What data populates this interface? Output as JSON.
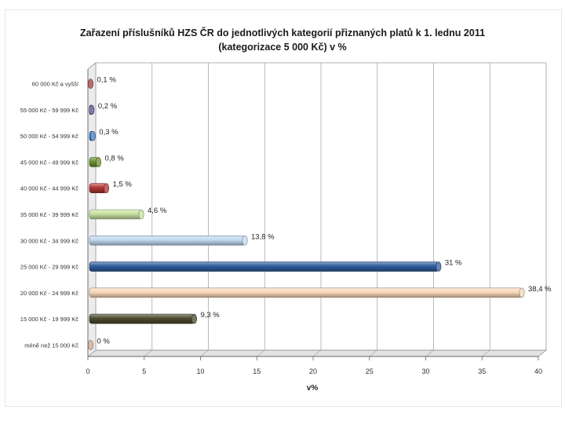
{
  "chart_data": {
    "type": "bar",
    "orientation": "horizontal",
    "title_line1": "Zařazení příslušníků HZS ČR do jednotlivých kategorií přiznaných platů  k 1. lednu 2011",
    "title_line2": "(kategorizace 5 000 Kč)  v %",
    "xlabel": "v%",
    "ylabel": "",
    "xlim": [
      0,
      40
    ],
    "x_ticks": [
      "0",
      "5",
      "10",
      "15",
      "20",
      "25",
      "30",
      "35",
      "40"
    ],
    "grid": "vertical",
    "legend": "none",
    "categories": [
      "60 000 Kč a vyšší",
      "55 000 Kč - 59 999 Kč",
      "50 000 Kč - 54 999 Kč",
      "45 000 Kč - 49 999 Kč",
      "40 000 Kč - 44 999 Kč",
      "35 000 Kč - 39 999 Kč",
      "30 000 Kč - 34 999 Kč",
      "25 000 Kč - 29 999 Kč",
      "20 000 Kč - 24 999 Kč",
      "15 000 Kč - 19 999 Kč",
      "méně než 15 000 Kč"
    ],
    "values": [
      0.1,
      0.2,
      0.3,
      0.8,
      1.5,
      4.6,
      13.8,
      31,
      38.4,
      9.3,
      0
    ],
    "data_labels": [
      "0,1 %",
      "0,2 %",
      "0,3 %",
      "0,8 %",
      "1,5 %",
      "4,6 %",
      "13,8 %",
      "31 %",
      "38,4 %",
      "9,3 %",
      "0 %"
    ],
    "colors": [
      "#a0403c",
      "#5a4a8a",
      "#3a7fc4",
      "#6a8f2e",
      "#b03434",
      "#c6e0a0",
      "#c0d8f0",
      "#2e5c9e",
      "#f8d8b8",
      "#4c4a2e",
      "#c8a890"
    ]
  }
}
